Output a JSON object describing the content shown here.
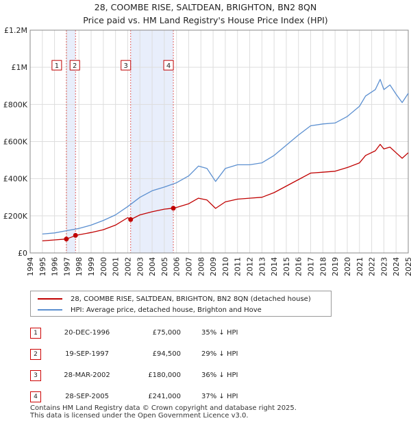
{
  "chart_data": {
    "type": "line",
    "title": "28, COOMBE RISE, SALTDEAN, BRIGHTON, BN2 8QN",
    "subtitle": "Price paid vs. HM Land Registry's House Price Index (HPI)",
    "xlabel": "",
    "ylabel": "",
    "xlim": [
      1994,
      2025
    ],
    "ylim": [
      0,
      1200000
    ],
    "x_ticks": [
      "1994",
      "1995",
      "1996",
      "1997",
      "1998",
      "1999",
      "2000",
      "2001",
      "2002",
      "2003",
      "2004",
      "2005",
      "2006",
      "2007",
      "2008",
      "2009",
      "2010",
      "2011",
      "2012",
      "2013",
      "2014",
      "2015",
      "2016",
      "2017",
      "2018",
      "2019",
      "2020",
      "2021",
      "2022",
      "2023",
      "2024",
      "2025"
    ],
    "y_ticks": [
      {
        "value": 0,
        "label": "£0"
      },
      {
        "value": 200000,
        "label": "£200K"
      },
      {
        "value": 400000,
        "label": "£400K"
      },
      {
        "value": 600000,
        "label": "£600K"
      },
      {
        "value": 800000,
        "label": "£800K"
      },
      {
        "value": 1000000,
        "label": "£1M"
      },
      {
        "value": 1200000,
        "label": "£1.2M"
      }
    ],
    "grid": true,
    "series": [
      {
        "name": "HPI: Average price, detached house, Brighton and Hove",
        "color": "#5b8fd0",
        "x": [
          1995,
          1996,
          1997,
          1998,
          1999,
          2000,
          2001,
          2002,
          2003,
          2004,
          2005,
          2006,
          2007,
          2007.8,
          2008.5,
          2009.2,
          2010,
          2011,
          2012,
          2013,
          2014,
          2015,
          2016,
          2017,
          2018,
          2019,
          2020,
          2021,
          2021.5,
          2022.3,
          2022.7,
          2023,
          2023.5,
          2024,
          2024.5,
          2025
        ],
        "values": [
          102000,
          108000,
          120000,
          132000,
          150000,
          175000,
          205000,
          250000,
          300000,
          335000,
          355000,
          378000,
          415000,
          468000,
          455000,
          385000,
          455000,
          475000,
          475000,
          485000,
          525000,
          580000,
          635000,
          685000,
          695000,
          700000,
          735000,
          790000,
          845000,
          880000,
          935000,
          880000,
          905000,
          855000,
          810000,
          860000
        ]
      },
      {
        "name": "28, COOMBE RISE, SALTDEAN, BRIGHTON, BN2 8QN (detached house)",
        "color": "#c00000",
        "x": [
          1995,
          1996,
          1996.97,
          1997.5,
          1997.72,
          1998,
          1999,
          2000,
          2001,
          2002,
          2002.24,
          2003,
          2004,
          2005,
          2005.74,
          2006,
          2007,
          2007.8,
          2008.5,
          2009.2,
          2010,
          2011,
          2012,
          2013,
          2014,
          2015,
          2016,
          2017,
          2018,
          2019,
          2020,
          2021,
          2021.5,
          2022.3,
          2022.7,
          2023,
          2023.5,
          2024,
          2024.5,
          2025
        ],
        "values": [
          65000,
          70000,
          75000,
          88000,
          94500,
          98000,
          110000,
          125000,
          150000,
          190000,
          180000,
          205000,
          222000,
          236000,
          241000,
          245000,
          265000,
          295000,
          285000,
          240000,
          275000,
          290000,
          295000,
          300000,
          325000,
          360000,
          395000,
          430000,
          435000,
          440000,
          460000,
          485000,
          525000,
          550000,
          585000,
          560000,
          570000,
          540000,
          510000,
          540000
        ]
      }
    ],
    "sales": [
      {
        "n": "1",
        "x": 1996.97,
        "y": 75000
      },
      {
        "n": "2",
        "x": 1997.72,
        "y": 94500
      },
      {
        "n": "3",
        "x": 2002.24,
        "y": 180000
      },
      {
        "n": "4",
        "x": 2005.74,
        "y": 241000
      }
    ],
    "shaded_ranges": [
      [
        1996.97,
        1997.72
      ],
      [
        2002.24,
        2005.74
      ]
    ]
  },
  "legend": {
    "property": "28, COOMBE RISE, SALTDEAN, BRIGHTON, BN2 8QN (detached house)",
    "hpi": "HPI: Average price, detached house, Brighton and Hove",
    "property_color": "#c00000",
    "hpi_color": "#5b8fd0"
  },
  "transactions": [
    {
      "n": "1",
      "date": "20-DEC-1996",
      "price": "£75,000",
      "hpi": "35% ↓ HPI"
    },
    {
      "n": "2",
      "date": "19-SEP-1997",
      "price": "£94,500",
      "hpi": "29% ↓ HPI"
    },
    {
      "n": "3",
      "date": "28-MAR-2002",
      "price": "£180,000",
      "hpi": "36% ↓ HPI"
    },
    {
      "n": "4",
      "date": "28-SEP-2005",
      "price": "£241,000",
      "hpi": "37% ↓ HPI"
    }
  ],
  "footer": {
    "line1": "Contains HM Land Registry data © Crown copyright and database right 2025.",
    "line2": "This data is licensed under the Open Government Licence v3.0."
  }
}
